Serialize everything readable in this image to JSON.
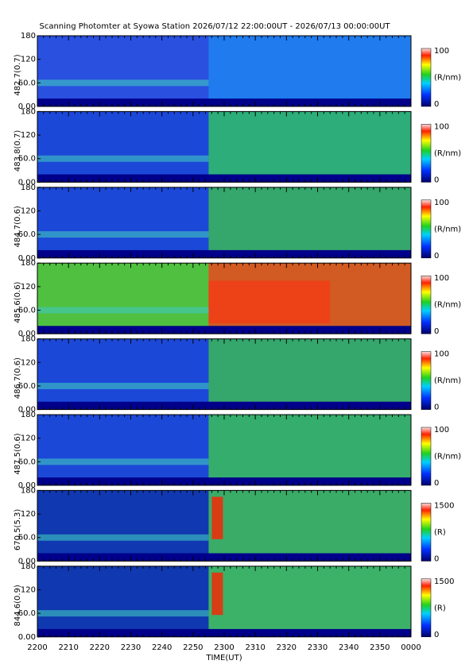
{
  "title": "Scanning Photomter at Syowa Station 2026/07/12 22:00:00UT - 2026/07/13 00:00:00UT",
  "xlabel": "TIME(UT)",
  "xticks": [
    "2200",
    "2210",
    "2220",
    "2230",
    "2240",
    "2250",
    "2300",
    "2310",
    "2320",
    "2330",
    "2340",
    "2350",
    "0000"
  ],
  "yticks": [
    {
      "value": 0,
      "label": "0.00"
    },
    {
      "value": 60,
      "label": "60.0"
    },
    120,
    180
  ],
  "ylim": [
    0,
    180
  ],
  "panels": [
    {
      "ylabel": "482.7(0.7)",
      "colorbar": {
        "min": 0,
        "max": 100,
        "unit": "(R/nm)"
      }
    },
    {
      "ylabel": "483.8(0.7)",
      "colorbar": {
        "min": 0,
        "max": 100,
        "unit": "(R/nm)"
      }
    },
    {
      "ylabel": "484.7(0.6)",
      "colorbar": {
        "min": 0,
        "max": 100,
        "unit": "(R/nm)"
      }
    },
    {
      "ylabel": "485.6(0.6)",
      "colorbar": {
        "min": 0,
        "max": 100,
        "unit": "(R/nm)"
      }
    },
    {
      "ylabel": "486.7(0.6)",
      "colorbar": {
        "min": 0,
        "max": 100,
        "unit": "(R/nm)"
      }
    },
    {
      "ylabel": "487.5(0.6)",
      "colorbar": {
        "min": 0,
        "max": 100,
        "unit": "(R/nm)"
      }
    },
    {
      "ylabel": "670.5(5.3)",
      "colorbar": {
        "min": 0,
        "max": 1500,
        "unit": "(R)"
      }
    },
    {
      "ylabel": "844.6(0.9)",
      "colorbar": {
        "min": 0,
        "max": 1500,
        "unit": "(R)"
      }
    }
  ]
}
